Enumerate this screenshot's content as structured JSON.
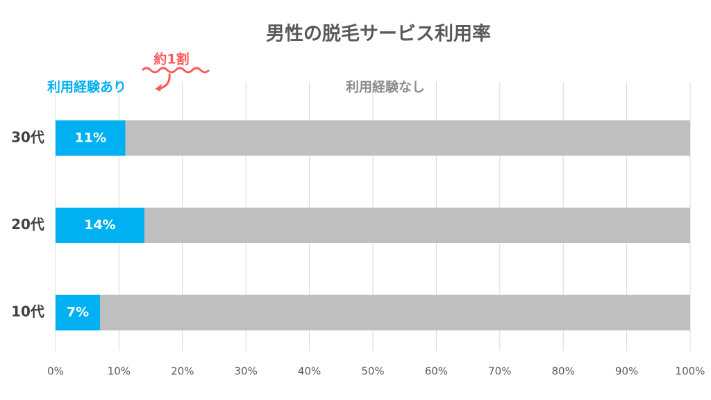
{
  "chart_data": {
    "type": "bar",
    "orientation": "horizontal",
    "stacked": true,
    "title": "男性の脱毛サービス利用率",
    "annotation": "約1割",
    "categories": [
      "30代",
      "20代",
      "10代"
    ],
    "series": [
      {
        "name": "利用経験あり",
        "color": "#00b0f0",
        "values": [
          11,
          14,
          7
        ],
        "value_labels": [
          "11%",
          "14%",
          "7%"
        ]
      },
      {
        "name": "利用経験なし",
        "color": "#bfbfbf",
        "values": [
          89,
          86,
          93
        ]
      }
    ],
    "xlim": [
      0,
      100
    ],
    "xticks": [
      {
        "value": 0,
        "label": "0%"
      },
      {
        "value": 10,
        "label": "10%"
      },
      {
        "value": 20,
        "label": "20%"
      },
      {
        "value": 30,
        "label": "30%"
      },
      {
        "value": 40,
        "label": "40%"
      },
      {
        "value": 50,
        "label": "50%"
      },
      {
        "value": 60,
        "label": "60%"
      },
      {
        "value": 70,
        "label": "70%"
      },
      {
        "value": 80,
        "label": "80%"
      },
      {
        "value": 90,
        "label": "90%"
      },
      {
        "value": 100,
        "label": "100%"
      }
    ],
    "grid": true
  }
}
